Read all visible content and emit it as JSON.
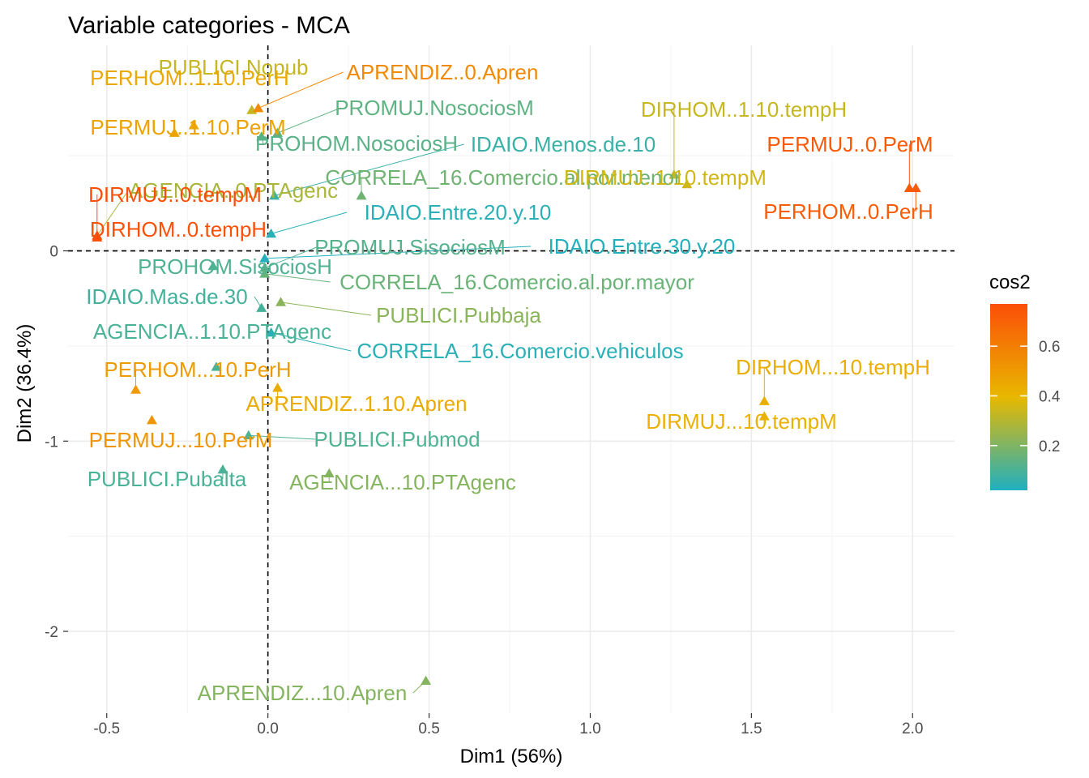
{
  "chart_data": {
    "type": "scatter",
    "title": "Variable categories - MCA",
    "xlabel": "Dim1 (56%)",
    "ylabel": "Dim2 (36.4%)",
    "xlim": [
      -0.62,
      2.13
    ],
    "ylim": [
      -2.43,
      1.08
    ],
    "x_ticks": [
      -0.5,
      0.0,
      0.5,
      1.0,
      1.5,
      2.0
    ],
    "x_tick_labels": [
      "-0.5",
      "0.0",
      "0.5",
      "1.0",
      "1.5",
      "2.0"
    ],
    "y_ticks": [
      -2,
      -1,
      0
    ],
    "y_tick_labels": [
      "-2",
      "-1",
      "0"
    ],
    "grid": true,
    "reference_lines": {
      "x": 0,
      "y": 0,
      "style": "dashed"
    },
    "legend": {
      "title": "cos2",
      "placement": "right",
      "range": [
        0.02,
        0.77
      ],
      "ticks": [
        0.2,
        0.4,
        0.6
      ],
      "tick_labels": [
        "0.2",
        "0.4",
        "0.6"
      ],
      "gradient": [
        "#1FB0C0",
        "#E8B800",
        "#FC4E07"
      ]
    },
    "points": [
      {
        "name": "PUBLICI.Nopub",
        "x": -0.05,
        "y": 0.74,
        "cos2": 0.33
      },
      {
        "name": "PERHOM..1.10.PerH",
        "x": -0.23,
        "y": 0.66,
        "cos2": 0.45
      },
      {
        "name": "APRENDIZ..0.Apren",
        "x": -0.03,
        "y": 0.75,
        "cos2": 0.56
      },
      {
        "name": "PERMUJ..1.10.PerM",
        "x": -0.29,
        "y": 0.62,
        "cos2": 0.47
      },
      {
        "name": "PROMUJ.NosociosM",
        "x": 0.03,
        "y": 0.62,
        "cos2": 0.14
      },
      {
        "name": "PROHOM.NosociosH",
        "x": -0.02,
        "y": 0.6,
        "cos2": 0.13
      },
      {
        "name": "IDAIO.Menos.de.10",
        "x": 0.02,
        "y": 0.29,
        "cos2": 0.07
      },
      {
        "name": "CORRELA_16.Comercio.al.por.menor",
        "x": 0.29,
        "y": 0.29,
        "cos2": 0.17
      },
      {
        "name": "DIRHOM..1.10.tempH",
        "x": 1.26,
        "y": 0.4,
        "cos2": 0.33
      },
      {
        "name": "DIRMUJ..1.10.tempM",
        "x": 1.3,
        "y": 0.35,
        "cos2": 0.35
      },
      {
        "name": "PERMUJ..0.PerM",
        "x": 1.99,
        "y": 0.33,
        "cos2": 0.73
      },
      {
        "name": "PERHOM..0.PerH",
        "x": 2.01,
        "y": 0.33,
        "cos2": 0.72
      },
      {
        "name": "AGENCIA..0.PTAgenc",
        "x": -0.53,
        "y": 0.08,
        "cos2": 0.28
      },
      {
        "name": "DIRMUJ..0.tempM",
        "x": -0.53,
        "y": 0.08,
        "cos2": 0.77
      },
      {
        "name": "DIRHOM..0.tempH",
        "x": -0.53,
        "y": 0.07,
        "cos2": 0.76
      },
      {
        "name": "IDAIO.Entre.20.y.10",
        "x": 0.01,
        "y": 0.09,
        "cos2": 0.04
      },
      {
        "name": "IDAIO.Entre.30.y.20",
        "x": -0.01,
        "y": -0.04,
        "cos2": 0.03
      },
      {
        "name": "PROMUJ.SisociosM",
        "x": -0.01,
        "y": -0.09,
        "cos2": 0.12
      },
      {
        "name": "PROHOM.SisociosH",
        "x": -0.17,
        "y": -0.08,
        "cos2": 0.11
      },
      {
        "name": "CORRELA_16.Comercio.al.por.mayor",
        "x": -0.01,
        "y": -0.12,
        "cos2": 0.16
      },
      {
        "name": "PUBLICI.Pubbaja",
        "x": 0.04,
        "y": -0.27,
        "cos2": 0.22
      },
      {
        "name": "IDAIO.Mas.de.30",
        "x": -0.02,
        "y": -0.3,
        "cos2": 0.09
      },
      {
        "name": "CORRELA_16.Comercio.vehiculos",
        "x": 0.01,
        "y": -0.43,
        "cos2": 0.04
      },
      {
        "name": "AGENCIA..1.10.PTAgenc",
        "x": -0.16,
        "y": -0.61,
        "cos2": 0.1
      },
      {
        "name": "PERHOM...10.PerH",
        "x": -0.41,
        "y": -0.73,
        "cos2": 0.5
      },
      {
        "name": "APRENDIZ..1.10.Apren",
        "x": 0.03,
        "y": -0.72,
        "cos2": 0.44
      },
      {
        "name": "PERMUJ...10.PerM",
        "x": -0.36,
        "y": -0.89,
        "cos2": 0.52
      },
      {
        "name": "PUBLICI.Pubmod",
        "x": -0.06,
        "y": -0.97,
        "cos2": 0.11
      },
      {
        "name": "PUBLICI.Pubalta",
        "x": -0.14,
        "y": -1.15,
        "cos2": 0.1
      },
      {
        "name": "AGENCIA...10.PTAgenc",
        "x": 0.19,
        "y": -1.17,
        "cos2": 0.21
      },
      {
        "name": "DIRHOM...10.tempH",
        "x": 1.54,
        "y": -0.79,
        "cos2": 0.43
      },
      {
        "name": "DIRMUJ...10.tempM",
        "x": 1.54,
        "y": -0.87,
        "cos2": 0.42
      },
      {
        "name": "APRENDIZ...10.Apren",
        "x": 0.49,
        "y": -2.26,
        "cos2": 0.21
      }
    ]
  }
}
